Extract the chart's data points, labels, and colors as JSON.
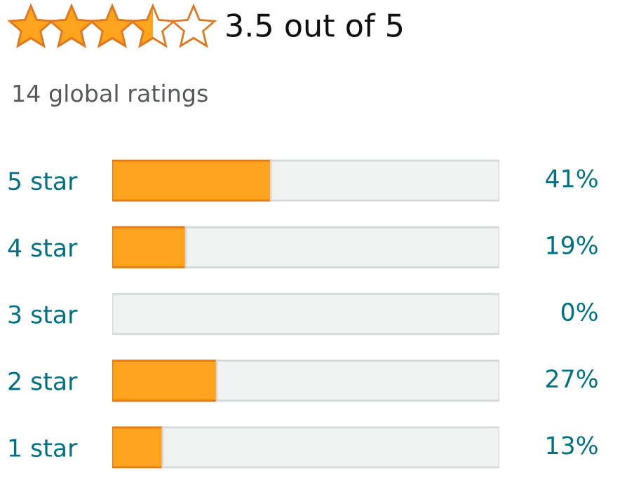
{
  "chart_data": {
    "type": "bar",
    "orientation": "horizontal",
    "stacked": true,
    "title": "3.5 out of 5",
    "subtitle": "14 global ratings",
    "categories": [
      "5 star",
      "4 star",
      "3 star",
      "2 star",
      "1 star"
    ],
    "series": [
      {
        "color": "#ffa41c",
        "values": [
          41,
          19,
          0,
          27,
          13
        ],
        "value_labels": [
          "41%",
          "19%",
          "0%",
          "27%",
          "13%"
        ]
      },
      {
        "color": "#f0f2f2",
        "values": [
          59,
          81,
          100,
          73,
          87
        ]
      }
    ],
    "tick_labels": "y",
    "grid": false,
    "legend": false
  }
}
